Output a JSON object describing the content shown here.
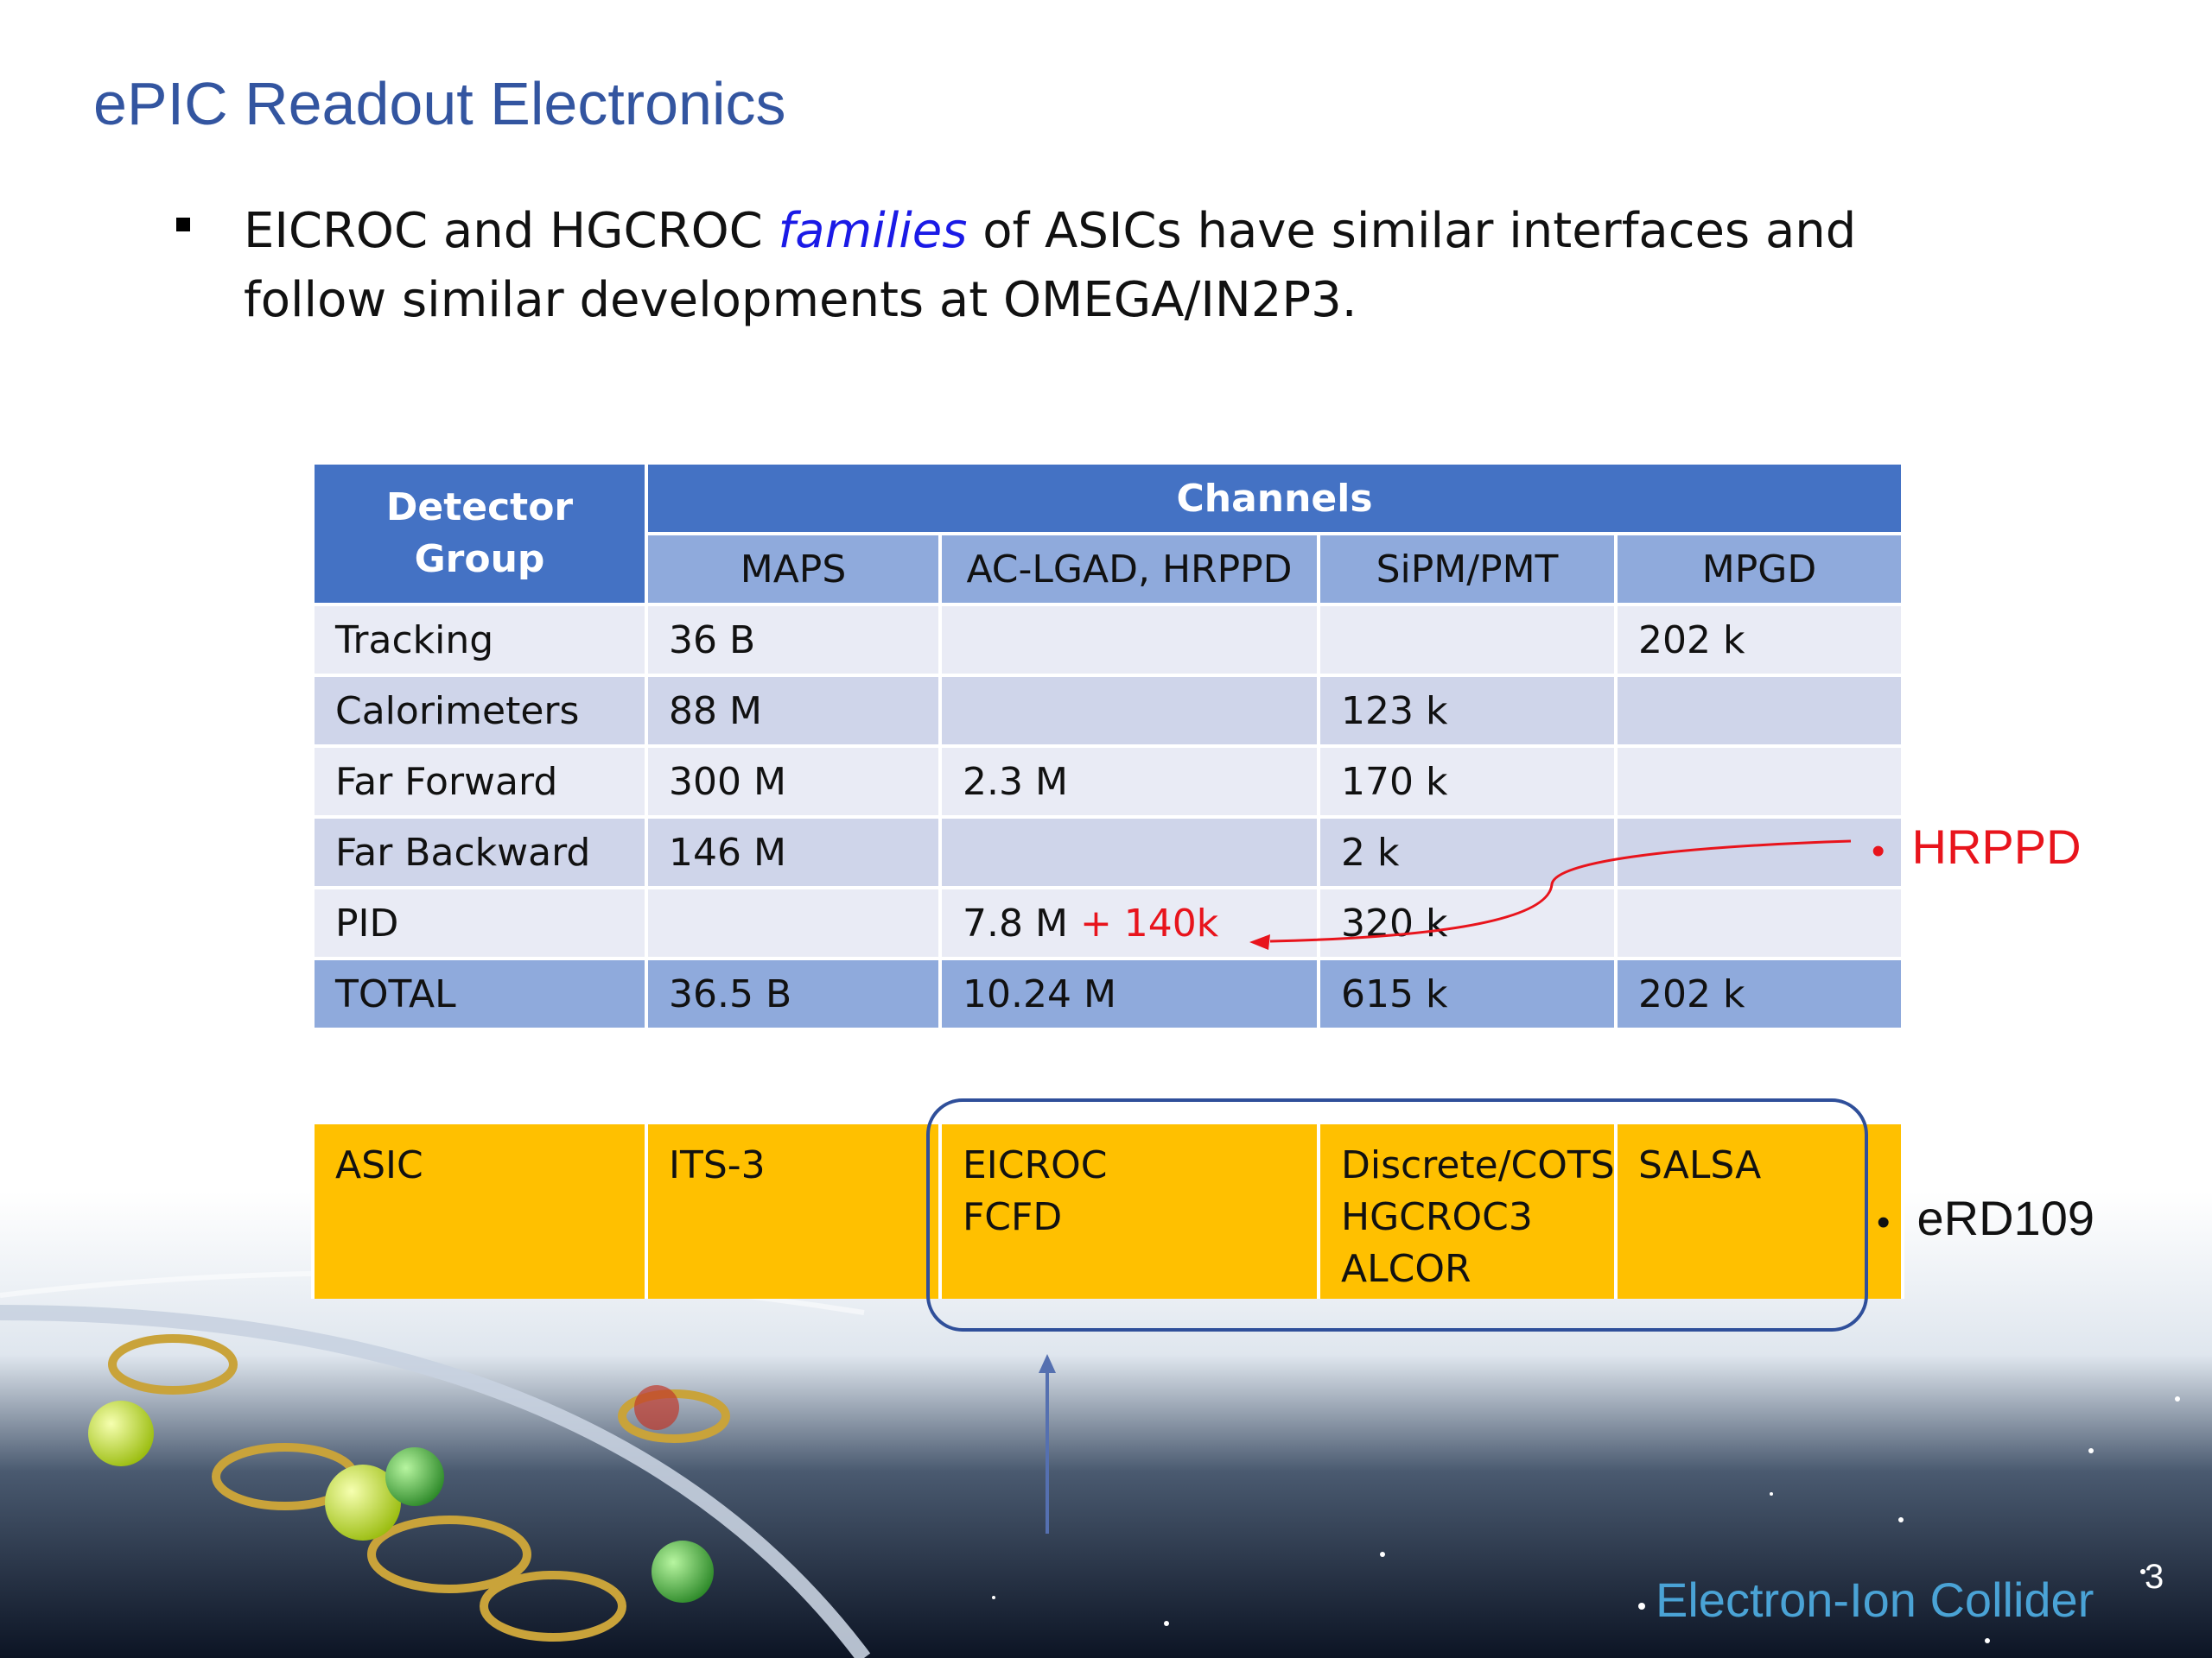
{
  "slide": {
    "title": "ePIC Readout Electronics",
    "bullet": {
      "before": "EICROC and HGCROC ",
      "emphasis": "families",
      "after": " of ASICs have similar interfaces and follow similar developments at OMEGA/IN2P3."
    },
    "page_number": "3",
    "brand": "Electron-Ion Collider"
  },
  "table": {
    "group_header": "Detector Group",
    "channels_header": "Channels",
    "columns": [
      "MAPS",
      "AC-LGAD, HRPPD",
      "SiPM/PMT",
      "MPGD"
    ],
    "rows": [
      {
        "group": "Tracking",
        "maps": "36 B",
        "aclgad": "",
        "sipm": "",
        "mpgd": "202 k"
      },
      {
        "group": "Calorimeters",
        "maps": "88 M",
        "aclgad": "",
        "sipm": "123 k",
        "mpgd": ""
      },
      {
        "group": "Far Forward",
        "maps": "300 M",
        "aclgad": "2.3 M",
        "sipm": "170 k",
        "mpgd": ""
      },
      {
        "group": "Far Backward",
        "maps": "146 M",
        "aclgad": "",
        "sipm": "2 k",
        "mpgd": ""
      },
      {
        "group": "PID",
        "maps": "",
        "aclgad": "7.8 M",
        "aclgad_extra": "+ 140k",
        "sipm": "320 k",
        "mpgd": ""
      }
    ],
    "total": {
      "group": "TOTAL",
      "maps": "36.5 B",
      "aclgad": "10.24 M",
      "sipm": "615 k",
      "mpgd": "202 k"
    }
  },
  "asic": {
    "label": "ASIC",
    "maps": [
      "ITS-3"
    ],
    "aclgad": [
      "EICROC",
      "FCFD"
    ],
    "sipm": [
      "Discrete/COTS",
      "HGCROC3",
      "ALCOR"
    ],
    "mpgd": [
      "SALSA"
    ]
  },
  "annotations": {
    "hrppd": "HRPPD",
    "erd": "eRD109",
    "bullet_char": "•"
  },
  "colors": {
    "title": "#3355a0",
    "header": "#4472c4",
    "subheader": "#8faadc",
    "asic": "#ffc000",
    "accent_red": "#e8141c",
    "box": "#2f4f9a"
  }
}
